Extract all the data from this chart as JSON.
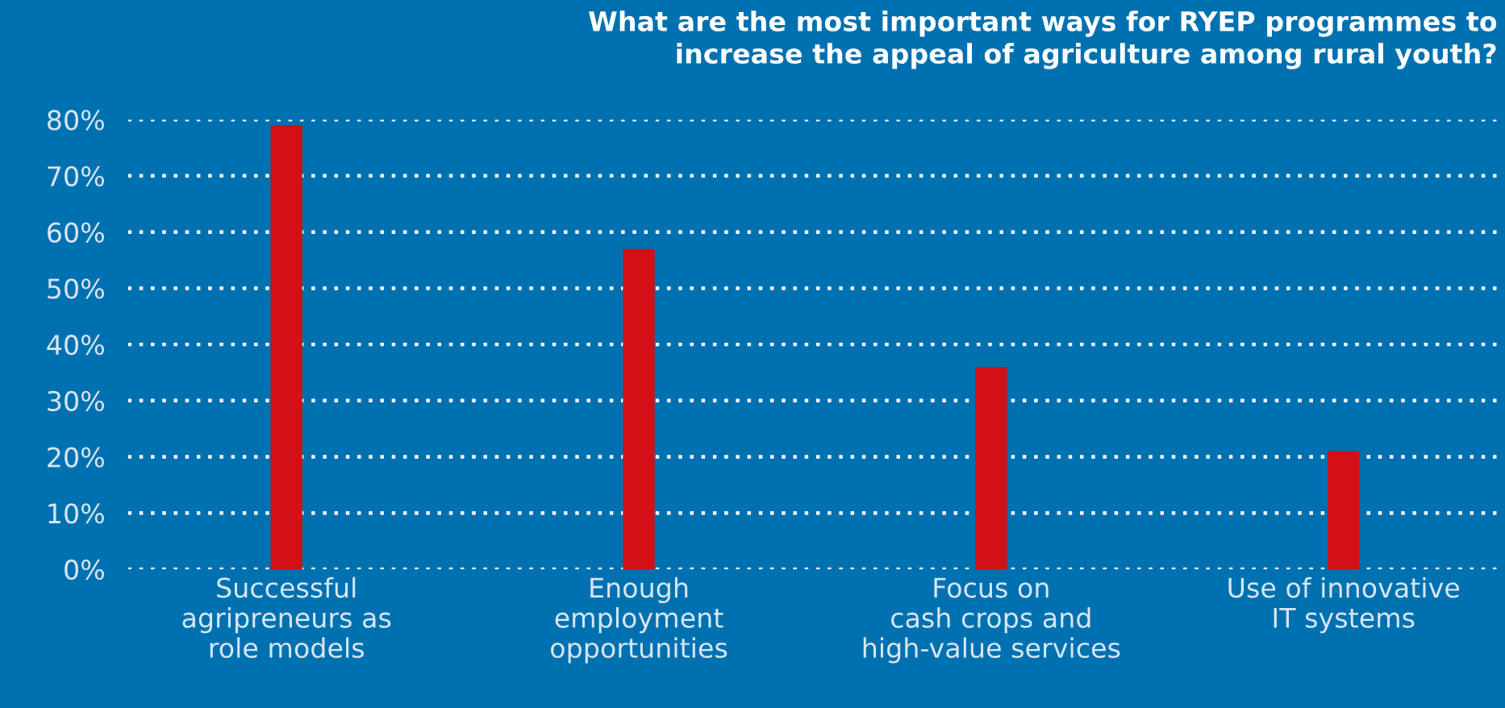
{
  "chart_data": {
    "type": "bar",
    "title": "What are the most important ways for RYEP programmes to\nincrease the appeal of agriculture among rural youth?",
    "categories": [
      "Successful\nagripreneurs as\nrole models",
      "Enough\nemployment\nopportunities",
      "Focus on\ncash crops and\nhigh-value services",
      "Use of innovative\nIT systems"
    ],
    "values": [
      79,
      57,
      36,
      21
    ],
    "color": "#d21016",
    "ylim": [
      0,
      80
    ],
    "yticks": [
      {
        "value": 0,
        "label": "0%"
      },
      {
        "value": 10,
        "label": "10%"
      },
      {
        "value": 20,
        "label": "20%"
      },
      {
        "value": 30,
        "label": "30%"
      },
      {
        "value": 40,
        "label": "40%"
      },
      {
        "value": 50,
        "label": "50%"
      },
      {
        "value": 60,
        "label": "60%"
      },
      {
        "value": 70,
        "label": "70%"
      },
      {
        "value": 80,
        "label": "80%"
      }
    ],
    "grid": "y",
    "legend": false
  }
}
